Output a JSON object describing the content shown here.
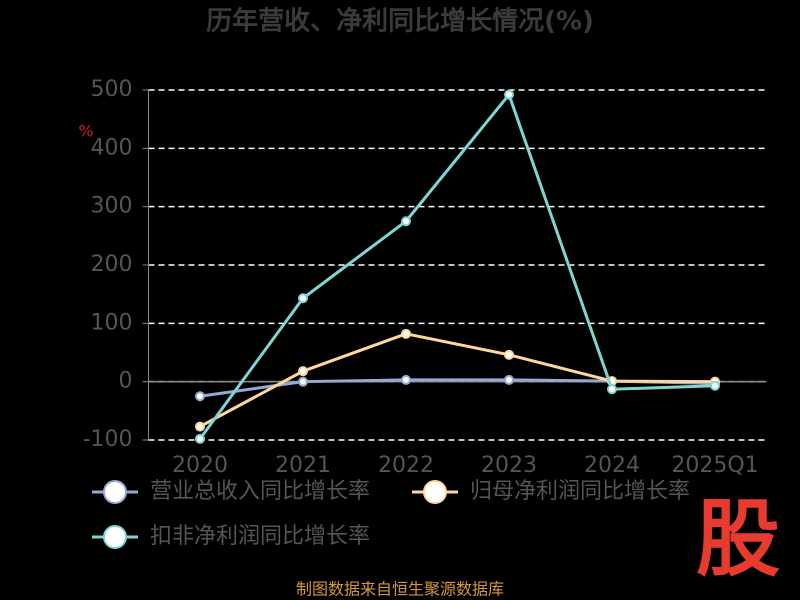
{
  "chart_data": {
    "type": "line",
    "title": "历年营收、净利同比增长情况(%)",
    "y_label": "%",
    "categories": [
      "2020",
      "2021",
      "2022",
      "2023",
      "2024",
      "2025Q1"
    ],
    "series": [
      {
        "name": "营业总收入同比增长率",
        "color": "#94a9d6",
        "values": [
          -25,
          0,
          3,
          3,
          1,
          -3
        ]
      },
      {
        "name": "归母净利润同比增长率",
        "color": "#ffd699",
        "values": [
          -77,
          18,
          82,
          46,
          1,
          0
        ]
      },
      {
        "name": "扣非净利润同比增长率",
        "color": "#80d4d4",
        "values": [
          -98,
          143,
          275,
          492,
          -13,
          -7
        ]
      }
    ],
    "ylim": [
      -100,
      500
    ],
    "yticks": [
      -100,
      0,
      100,
      200,
      300,
      400,
      500
    ],
    "grid": true,
    "source": "制图数据来自恒生聚源数据库",
    "logo": "股"
  }
}
